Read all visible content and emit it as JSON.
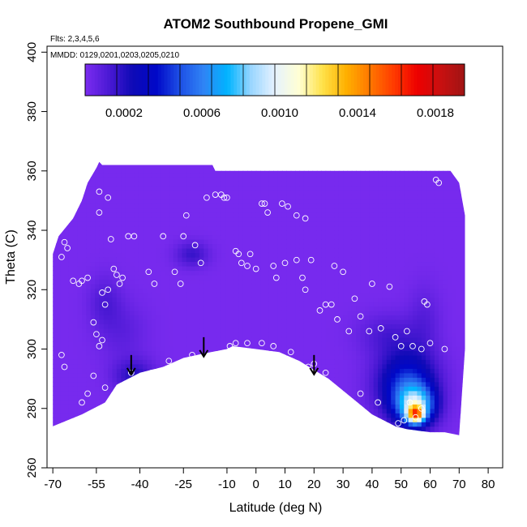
{
  "chart_data": {
    "type": "heatmap",
    "title": "ATOM2 Southbound Propene_GMI",
    "annotations": [
      "Flts: 2,3,4,5,6",
      "MMDD: 0129,0201,0203,0205,0210"
    ],
    "xlabel": "Latitude (deg N)",
    "ylabel": "Theta (C)",
    "xlim": [
      -72,
      85
    ],
    "ylim": [
      260,
      402
    ],
    "x_ticks": [
      -70,
      -55,
      -40,
      -25,
      -10,
      0,
      10,
      20,
      30,
      40,
      50,
      60,
      70,
      80
    ],
    "y_ticks": [
      260,
      280,
      300,
      320,
      340,
      360,
      380,
      400
    ],
    "colorbar": {
      "range": [
        0.0,
        0.00195
      ],
      "ticks": [
        "0.0002",
        "0.0006",
        "0.0010",
        "0.0014",
        "0.0018"
      ],
      "tick_values": [
        0.0002,
        0.0006,
        0.001,
        0.0014,
        0.0018
      ],
      "colors": [
        "#7b2cf0",
        "#4b19d4",
        "#0e0ab6",
        "#0008c8",
        "#1e50e6",
        "#2f84f5",
        "#00b4ff",
        "#9ad6ff",
        "#e6f2ff",
        "#ffffd4",
        "#ffe24a",
        "#ffb000",
        "#ff7800",
        "#ff3c00",
        "#ee0000",
        "#c81010",
        "#a01414"
      ]
    },
    "background_value": 1e-05,
    "bottom_boundary": [
      [
        -70,
        274
      ],
      [
        -60,
        278
      ],
      [
        -52,
        282
      ],
      [
        -48,
        288
      ],
      [
        -40,
        292
      ],
      [
        -32,
        294
      ],
      [
        -25,
        297
      ],
      [
        -18,
        298.5
      ],
      [
        -10,
        300
      ],
      [
        -8,
        301
      ],
      [
        0,
        300
      ],
      [
        8,
        299
      ],
      [
        15,
        296
      ],
      [
        20,
        293
      ],
      [
        25,
        290
      ],
      [
        30,
        286
      ],
      [
        35,
        282
      ],
      [
        40,
        278
      ],
      [
        45,
        275.5
      ],
      [
        48,
        274
      ],
      [
        52,
        273
      ],
      [
        56,
        272.5
      ],
      [
        60,
        272
      ],
      [
        65,
        272
      ],
      [
        70,
        271
      ]
    ],
    "top_boundary": [
      [
        -70,
        332
      ],
      [
        -68,
        338
      ],
      [
        -63,
        344
      ],
      [
        -60,
        350
      ],
      [
        -58,
        356
      ],
      [
        -55,
        361
      ],
      [
        -54,
        363
      ],
      [
        -53,
        362
      ],
      [
        -15,
        362
      ],
      [
        -14,
        360
      ],
      [
        67,
        360
      ],
      [
        70,
        356
      ],
      [
        72,
        345
      ],
      [
        72,
        300
      ]
    ],
    "blobs": [
      {
        "lat": -42,
        "theta": 291,
        "value": 0.00018,
        "sx": 5,
        "sy": 4
      },
      {
        "lat": -52,
        "theta": 316,
        "value": 0.0001,
        "sx": 4,
        "sy": 6
      },
      {
        "lat": -46,
        "theta": 306,
        "value": 7e-05,
        "sx": 6,
        "sy": 7
      },
      {
        "lat": -22,
        "theta": 332,
        "value": 0.00015,
        "sx": 4,
        "sy": 3
      },
      {
        "lat": 45,
        "theta": 305,
        "value": 0.0001,
        "sx": 7,
        "sy": 5
      },
      {
        "lat": 58,
        "theta": 310,
        "value": 8e-05,
        "sx": 4,
        "sy": 8
      },
      {
        "lat": 52,
        "theta": 288,
        "value": 0.00045,
        "sx": 7,
        "sy": 8
      },
      {
        "lat": 55,
        "theta": 281,
        "value": 0.0007,
        "sx": 4.5,
        "sy": 4.5
      },
      {
        "lat": 55,
        "theta": 278,
        "value": 0.0009,
        "sx": 2,
        "sy": 2
      }
    ],
    "arrows": [
      {
        "lat": -43,
        "theta": 298
      },
      {
        "lat": -18,
        "theta": 304
      },
      {
        "lat": 20,
        "theta": 298
      }
    ],
    "points": [
      [
        -67,
        331
      ],
      [
        -66,
        336
      ],
      [
        -65,
        334
      ],
      [
        -63,
        323
      ],
      [
        -61,
        322
      ],
      [
        -60,
        323
      ],
      [
        -58,
        324
      ],
      [
        -54,
        353
      ],
      [
        -51,
        351
      ],
      [
        -54,
        346
      ],
      [
        -50,
        337
      ],
      [
        -49,
        327
      ],
      [
        -48,
        325
      ],
      [
        -47,
        322
      ],
      [
        -46,
        324
      ],
      [
        -53,
        319
      ],
      [
        -51,
        320
      ],
      [
        -52,
        315
      ],
      [
        -56,
        309
      ],
      [
        -55,
        305
      ],
      [
        -53,
        303
      ],
      [
        -54,
        301
      ],
      [
        -67,
        298
      ],
      [
        -66,
        294
      ],
      [
        -56,
        291
      ],
      [
        -52,
        287
      ],
      [
        -43,
        292
      ],
      [
        -36,
        292
      ],
      [
        -30,
        296
      ],
      [
        -22,
        298
      ],
      [
        -44,
        338
      ],
      [
        -42,
        338
      ],
      [
        -37,
        326
      ],
      [
        -35,
        322
      ],
      [
        -32,
        338
      ],
      [
        -28,
        326
      ],
      [
        -26,
        322
      ],
      [
        -25,
        338
      ],
      [
        -24,
        345
      ],
      [
        -21,
        335
      ],
      [
        -19,
        329
      ],
      [
        -17,
        351
      ],
      [
        -14,
        352
      ],
      [
        -12,
        352
      ],
      [
        -11,
        351
      ],
      [
        -10,
        351
      ],
      [
        -7,
        333
      ],
      [
        -6,
        332
      ],
      [
        -5,
        329
      ],
      [
        -3,
        328
      ],
      [
        -2,
        332
      ],
      [
        0,
        327
      ],
      [
        2,
        349
      ],
      [
        3,
        349
      ],
      [
        4,
        346
      ],
      [
        6,
        328
      ],
      [
        7,
        324
      ],
      [
        9,
        349
      ],
      [
        11,
        348
      ],
      [
        14,
        345
      ],
      [
        17,
        344
      ],
      [
        10,
        329
      ],
      [
        14,
        330
      ],
      [
        16,
        324
      ],
      [
        17,
        320
      ],
      [
        19,
        330
      ],
      [
        22,
        313
      ],
      [
        24,
        315
      ],
      [
        26,
        315
      ],
      [
        27,
        328
      ],
      [
        30,
        326
      ],
      [
        28,
        310
      ],
      [
        32,
        306
      ],
      [
        34,
        317
      ],
      [
        36,
        311
      ],
      [
        39,
        306
      ],
      [
        40,
        322
      ],
      [
        43,
        307
      ],
      [
        46,
        321
      ],
      [
        48,
        304
      ],
      [
        50,
        301
      ],
      [
        52,
        306
      ],
      [
        54,
        301
      ],
      [
        57,
        300
      ],
      [
        58,
        316
      ],
      [
        59,
        315
      ],
      [
        62,
        357
      ],
      [
        63,
        356
      ],
      [
        65,
        300
      ],
      [
        60,
        302
      ],
      [
        20,
        295
      ],
      [
        24,
        292
      ],
      [
        18,
        294
      ],
      [
        6,
        301
      ],
      [
        12,
        299
      ],
      [
        -7,
        302
      ],
      [
        -9,
        301
      ],
      [
        -3,
        302
      ],
      [
        2,
        302
      ],
      [
        36,
        285
      ],
      [
        42,
        282
      ],
      [
        38,
        278
      ],
      [
        51,
        276
      ],
      [
        49,
        275
      ],
      [
        55,
        277
      ],
      [
        57,
        280
      ],
      [
        53,
        282
      ],
      [
        -58,
        285
      ],
      [
        -60,
        282
      ],
      [
        -62,
        276
      ]
    ]
  }
}
